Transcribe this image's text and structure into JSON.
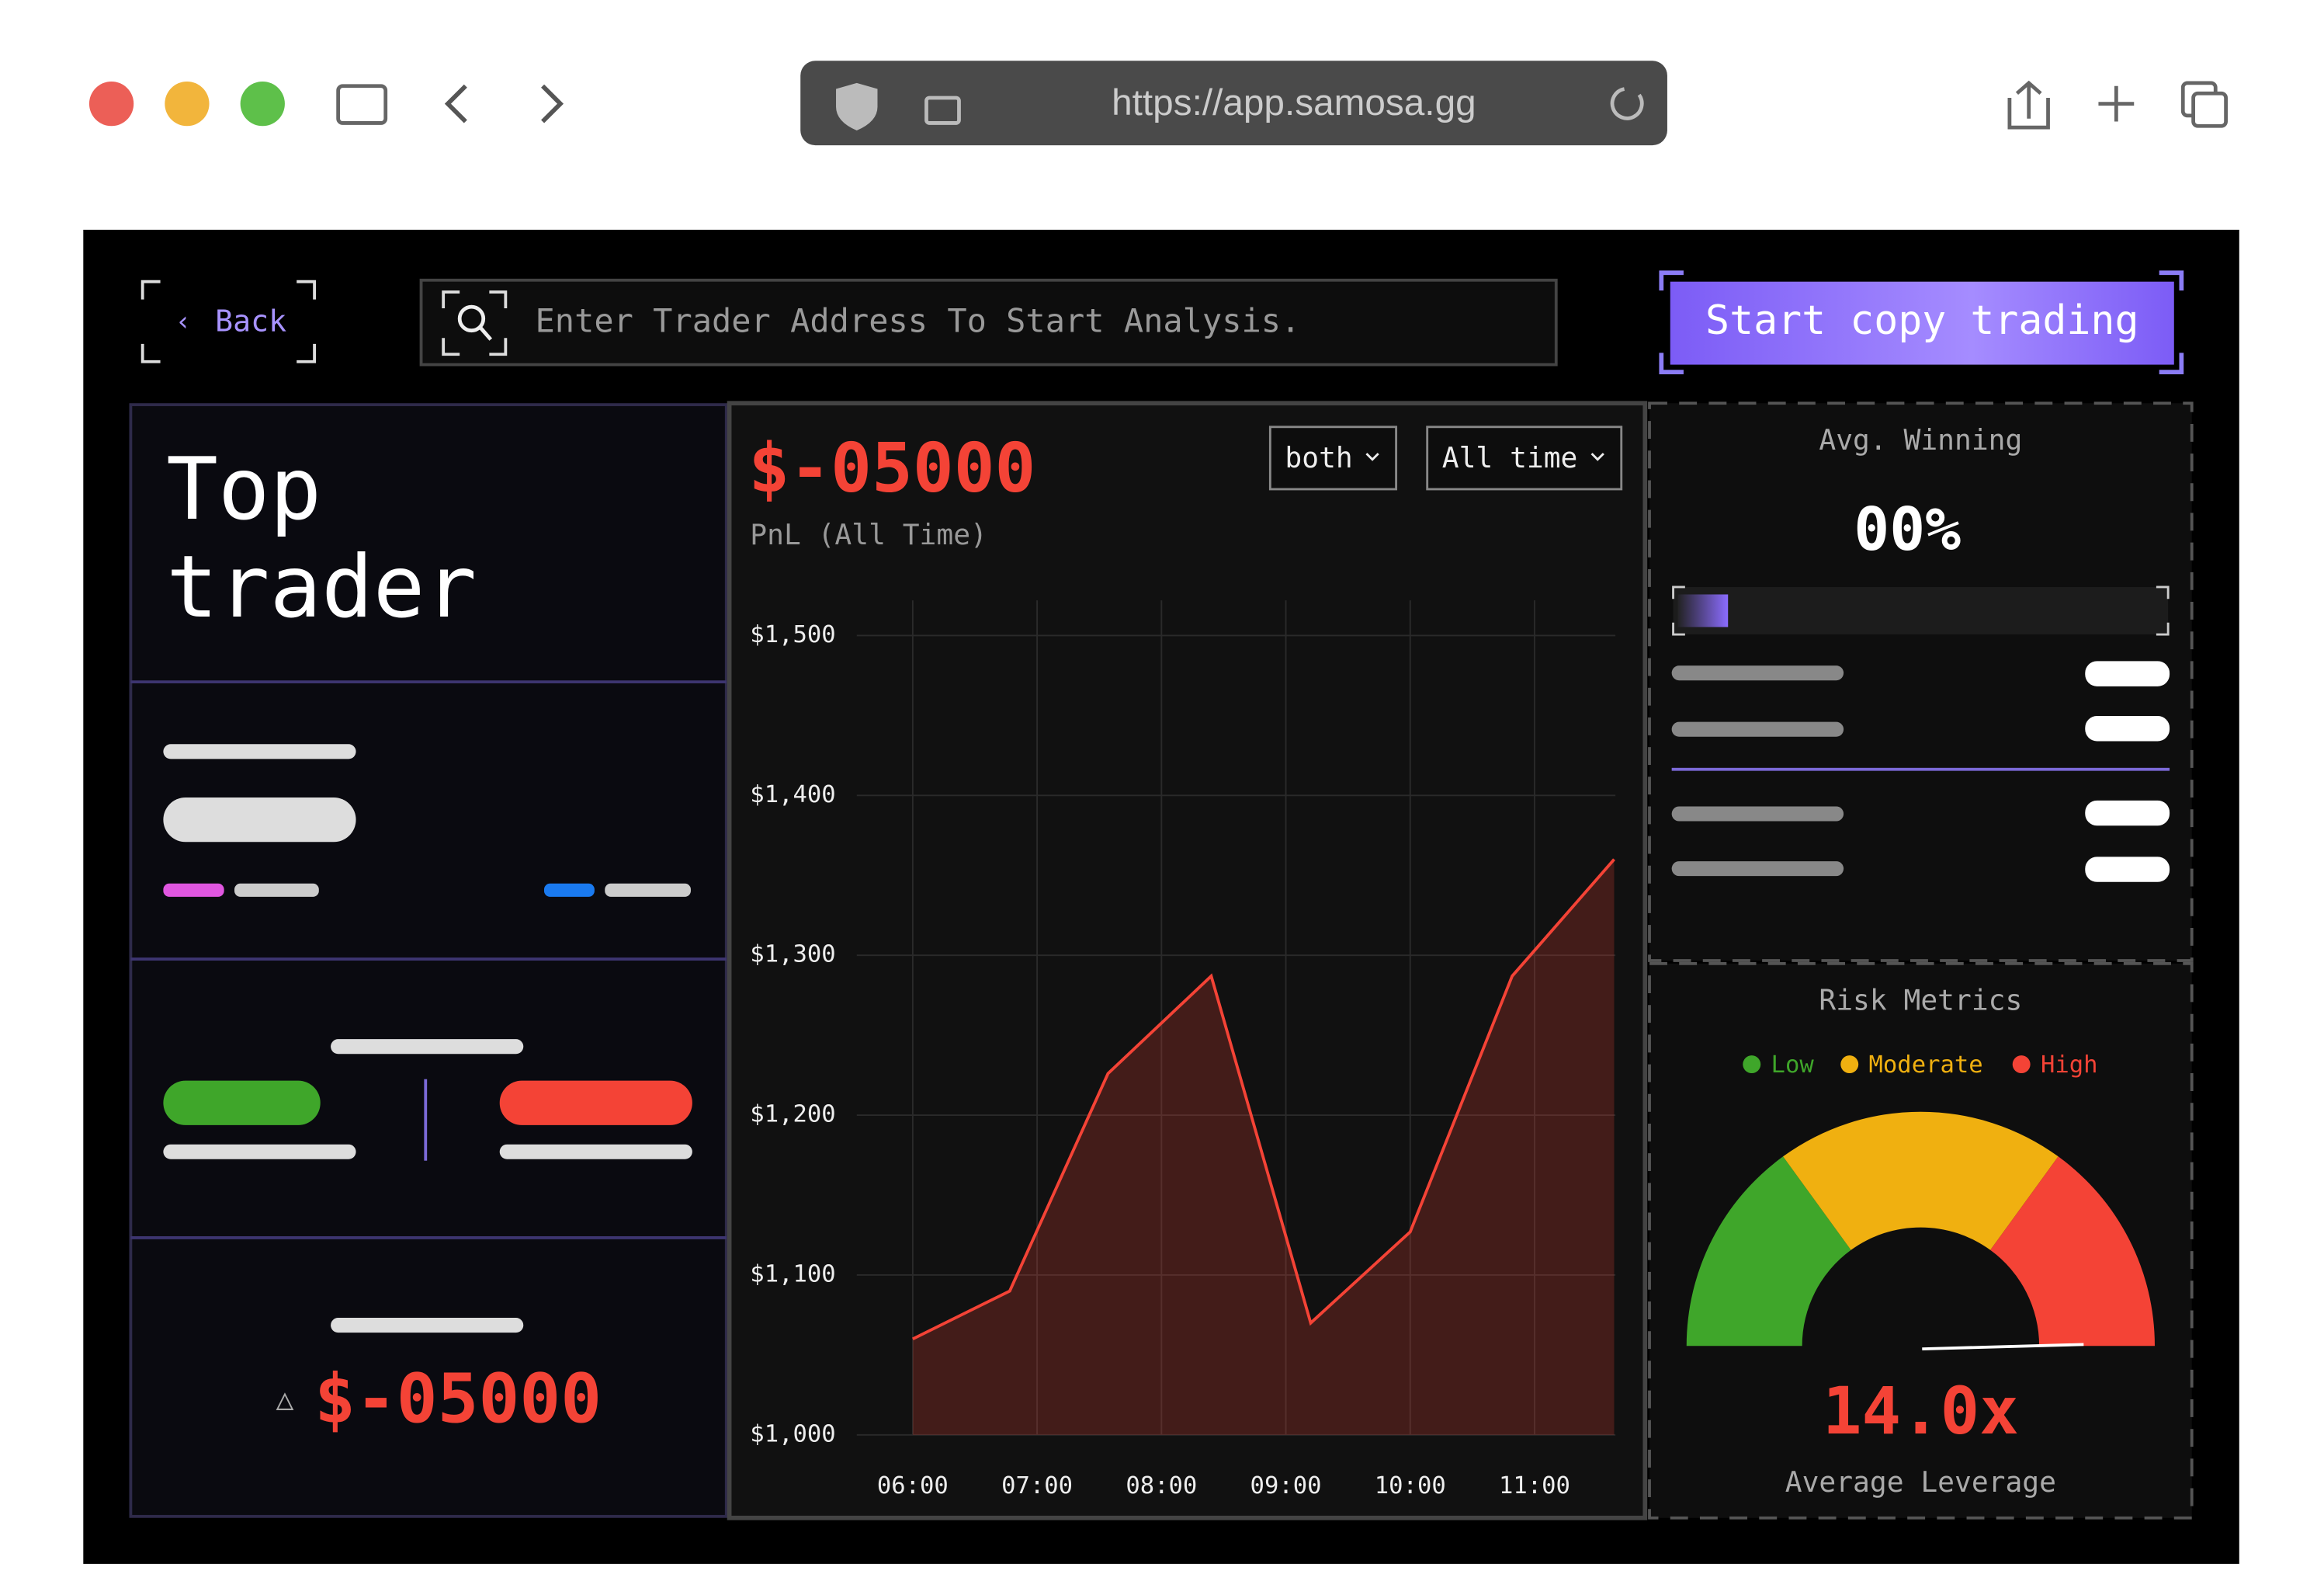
{
  "browser": {
    "url": "https://app.samosa.gg"
  },
  "header": {
    "back": "Back",
    "search_placeholder": "Enter Trader Address To Start Analysis.",
    "cta": "Start copy trading"
  },
  "left_panel": {
    "title_line1": "Top",
    "title_line2": "trader",
    "pnl": "$-05000"
  },
  "chart_data": {
    "type": "line",
    "title": "$-05000",
    "subtitle": "PnL (All Time)",
    "filters": [
      "both",
      "All time"
    ],
    "x": [
      6,
      6.78,
      7.57,
      8.4,
      9.2,
      10,
      10.82,
      11.64
    ],
    "values": [
      1060,
      1090,
      1226,
      1287,
      1070,
      1127,
      1287,
      1360
    ],
    "color": "#f44336",
    "xlim": [
      5.55,
      11.65
    ],
    "xticks": [
      {
        "value": 6,
        "label": "06:00"
      },
      {
        "value": 7,
        "label": "07:00"
      },
      {
        "value": 8,
        "label": "08:00"
      },
      {
        "value": 9,
        "label": "09:00"
      },
      {
        "value": 10,
        "label": "10:00"
      },
      {
        "value": 11,
        "label": "11:00"
      }
    ],
    "ylim": [
      1000,
      1522
    ],
    "yticks": [
      {
        "value": 1000,
        "label": "$1,000"
      },
      {
        "value": 1100,
        "label": "$1,100"
      },
      {
        "value": 1200,
        "label": "$1,200"
      },
      {
        "value": 1300,
        "label": "$1,300"
      },
      {
        "value": 1400,
        "label": "$1,400"
      },
      {
        "value": 1500,
        "label": "$1,500"
      }
    ],
    "grid": true
  },
  "avg_winning": {
    "title": "Avg. Winning",
    "value": "00%"
  },
  "risk": {
    "title": "Risk Metrics",
    "legend": [
      {
        "name": "Low",
        "color": "#3fa62a"
      },
      {
        "name": "Moderate",
        "color": "#f0b010"
      },
      {
        "name": "High",
        "color": "#f44336"
      }
    ],
    "leverage": "14.0x",
    "leverage_label": "Average Leverage"
  }
}
